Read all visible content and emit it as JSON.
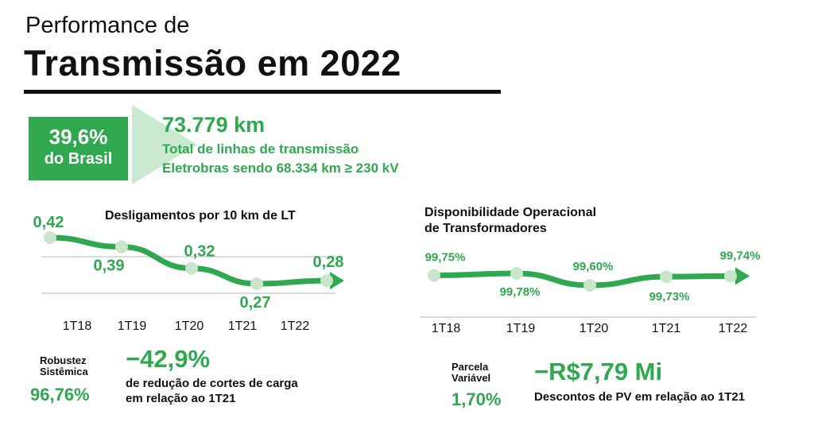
{
  "header": {
    "subtitle": "Performance de",
    "title": "Transmissão em 2022"
  },
  "brasil_badge": {
    "percent": "39,6%",
    "label": "do Brasil"
  },
  "lines_total": {
    "value": "73.779 km",
    "line1": "Total de linhas de transmissão",
    "line2": "Eletrobras sendo 68.334 km ≥ 230 kV"
  },
  "robustez": {
    "label_line1": "Robustez",
    "label_line2": "Sistêmica",
    "value": "96,76%",
    "headline": "−42,9%",
    "desc_line1": "de redução de cortes de carga",
    "desc_line2": "em relação ao 1T21"
  },
  "parcela": {
    "label_line1": "Parcela",
    "label_line2": "Variável",
    "value": "1,70%",
    "headline": "−R$7,79 Mi",
    "desc": "Descontos de PV em relação ao 1T21"
  },
  "colors": {
    "accent": "#2fa84f",
    "light_accent": "#cbe9cf",
    "point": "#c9e6cd",
    "text": "#111111"
  },
  "chart_data": [
    {
      "type": "line",
      "title": "Desligamentos por 10 km de LT",
      "categories": [
        "1T18",
        "1T19",
        "1T20",
        "1T21",
        "1T22"
      ],
      "values": [
        0.42,
        0.39,
        0.32,
        0.27,
        0.28
      ],
      "value_labels": [
        "0,42",
        "0,39",
        "0,32",
        "0,27",
        "0,28"
      ],
      "ylim": [
        0.25,
        0.44
      ],
      "grid": true
    },
    {
      "type": "line",
      "title_line1": "Disponibilidade Operacional",
      "title_line2": "de Transformadores",
      "categories": [
        "1T18",
        "1T19",
        "1T20",
        "1T21",
        "1T22"
      ],
      "values": [
        99.75,
        99.78,
        99.6,
        99.73,
        99.74
      ],
      "value_labels": [
        "99,75%",
        "99,78%",
        "99,60%",
        "99,73%",
        "99,74%"
      ],
      "grid": true
    }
  ]
}
